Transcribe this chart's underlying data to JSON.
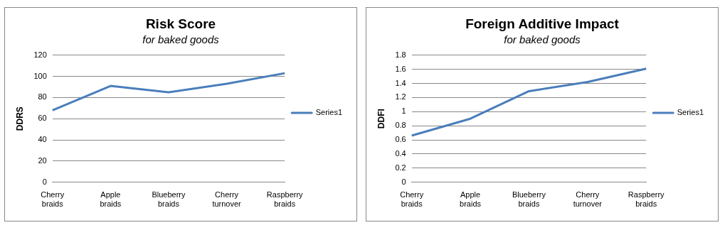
{
  "chart_data": [
    {
      "type": "line",
      "title": "Risk Score",
      "subtitle": "for baked goods",
      "ylabel": "DDRS",
      "categories": [
        "Cherry braids",
        "Apple braids",
        "Blueberry braids",
        "Cherry turnover",
        "Raspberry braids"
      ],
      "series": [
        {
          "name": "Series1",
          "color": "#4a7ebb",
          "values": [
            68,
            91,
            85,
            93,
            103
          ]
        }
      ],
      "ylim": [
        0,
        120
      ],
      "yticks": [
        0,
        20,
        40,
        60,
        80,
        100,
        120
      ],
      "grid": "y",
      "legend": "right",
      "marker": "none"
    },
    {
      "type": "line",
      "title": "Foreign Additive Impact",
      "subtitle": "for baked goods",
      "ylabel": "DDFI",
      "categories": [
        "Cherry braids",
        "Apple braids",
        "Blueberry braids",
        "Cherry turnover",
        "Raspberry braids"
      ],
      "series": [
        {
          "name": "Series1",
          "color": "#4a7ebb",
          "values": [
            0.66,
            0.9,
            1.29,
            1.42,
            1.61
          ]
        }
      ],
      "ylim": [
        0,
        1.8
      ],
      "yticks": [
        0,
        0.2,
        0.4,
        0.6,
        0.8,
        1,
        1.2,
        1.4,
        1.6,
        1.8
      ],
      "grid": "y",
      "legend": "right",
      "marker": "none"
    }
  ]
}
